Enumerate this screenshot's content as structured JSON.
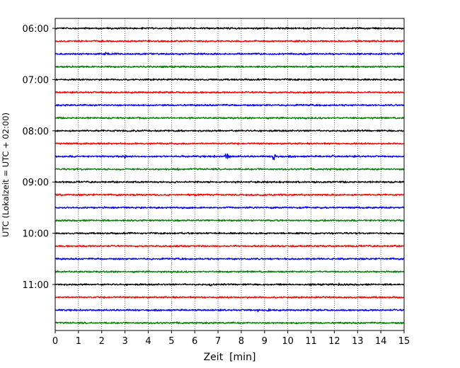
{
  "chart_data": {
    "type": "line",
    "title": "",
    "xlabel": "Zeit  [min]",
    "ylabel": "UTC (Lokalzeit = UTC + 02:00)",
    "xlim": [
      0,
      15
    ],
    "x_ticks": [
      0,
      1,
      2,
      3,
      4,
      5,
      6,
      7,
      8,
      9,
      10,
      11,
      12,
      13,
      14,
      15
    ],
    "y_tick_labels": [
      "06:00",
      "07:00",
      "08:00",
      "09:00",
      "10:00",
      "11:00"
    ],
    "grid": "vertical dotted at each minute",
    "row_minutes": 15,
    "row_colors": [
      "#000000",
      "#ff0000",
      "#0000ff",
      "#008000"
    ],
    "traces": [
      {
        "time": "06:00",
        "color": "black",
        "events": []
      },
      {
        "time": "06:15",
        "color": "red",
        "events": []
      },
      {
        "time": "06:30",
        "color": "blue",
        "events": [
          {
            "t": 2.15,
            "amp": 0.35
          }
        ]
      },
      {
        "time": "06:45",
        "color": "green",
        "events": []
      },
      {
        "time": "07:00",
        "color": "black",
        "events": []
      },
      {
        "time": "07:15",
        "color": "red",
        "events": [
          {
            "t": 2.4,
            "amp": 0.2
          }
        ]
      },
      {
        "time": "07:30",
        "color": "blue",
        "events": [
          {
            "t": 0.65,
            "amp": 0.18
          },
          {
            "t": 11.7,
            "amp": 0.15
          }
        ]
      },
      {
        "time": "07:45",
        "color": "green",
        "events": []
      },
      {
        "time": "08:00",
        "color": "black",
        "events": [
          {
            "t": 7.5,
            "amp": 0.2
          }
        ]
      },
      {
        "time": "08:15",
        "color": "red",
        "events": []
      },
      {
        "time": "08:30",
        "color": "blue",
        "events": [
          {
            "t": 3.0,
            "amp": 0.35
          },
          {
            "t": 6.8,
            "amp": 0.25
          },
          {
            "t": 7.35,
            "amp": 0.9
          },
          {
            "t": 9.4,
            "amp": 1.2
          },
          {
            "t": 11.95,
            "amp": 0.3
          }
        ]
      },
      {
        "time": "08:45",
        "color": "green",
        "events": [
          {
            "t": 1.1,
            "amp": 0.2
          },
          {
            "t": 5.3,
            "amp": 0.35
          }
        ]
      },
      {
        "time": "09:00",
        "color": "black",
        "events": []
      },
      {
        "time": "09:15",
        "color": "red",
        "events": []
      },
      {
        "time": "09:30",
        "color": "blue",
        "events": [
          {
            "t": 2.1,
            "amp": 0.18
          },
          {
            "t": 3.7,
            "amp": 0.3
          }
        ]
      },
      {
        "time": "09:45",
        "color": "green",
        "events": [
          {
            "t": 2.5,
            "amp": 0.22
          }
        ]
      },
      {
        "time": "10:00",
        "color": "black",
        "events": [
          {
            "t": 5.45,
            "amp": 0.25
          },
          {
            "t": 6.8,
            "amp": 0.22
          }
        ]
      },
      {
        "time": "10:15",
        "color": "red",
        "events": []
      },
      {
        "time": "10:30",
        "color": "blue",
        "events": []
      },
      {
        "time": "10:45",
        "color": "green",
        "events": []
      },
      {
        "time": "11:00",
        "color": "black",
        "events": [
          {
            "t": 6.65,
            "amp": 0.35
          },
          {
            "t": 9.0,
            "amp": 0.25
          },
          {
            "t": 12.2,
            "amp": 0.22
          }
        ]
      },
      {
        "time": "11:15",
        "color": "red",
        "events": []
      },
      {
        "time": "11:30",
        "color": "blue",
        "events": [
          {
            "t": 8.7,
            "amp": 0.3
          },
          {
            "t": 9.15,
            "amp": 0.45
          }
        ]
      },
      {
        "time": "11:45",
        "color": "green",
        "events": []
      }
    ]
  }
}
